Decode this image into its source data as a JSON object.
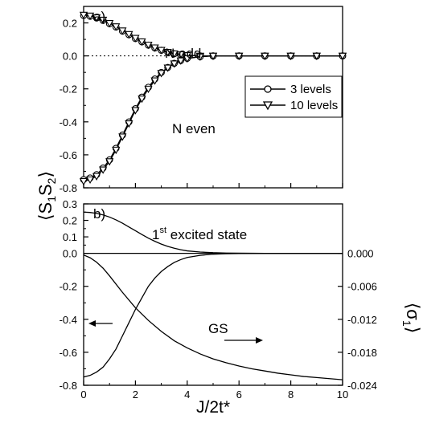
{
  "chart_data": [
    {
      "panel_label": "a)",
      "type": "line",
      "ylabel": "⟨S1S2⟩",
      "xlabel": "J/2t*",
      "xlim": [
        0,
        10
      ],
      "ylim": [
        -0.8,
        0.3
      ],
      "x_ticks": [
        0,
        2,
        4,
        6,
        8,
        10
      ],
      "y_ticks": [
        0.2,
        0.0,
        -0.2,
        -0.4,
        -0.6,
        -0.8
      ],
      "y_tick_labels": [
        "0.2",
        "0.0",
        "-0.2",
        "-0.4",
        "-0.6",
        "-0.8"
      ],
      "reference_line": {
        "y": 0.0,
        "style": "dotted"
      },
      "legend": {
        "position": "right",
        "entries": [
          "3 levels",
          "10 levels"
        ]
      },
      "annotations": [
        "N odd",
        "N even"
      ],
      "series": [
        {
          "name": "3 levels",
          "curve": "N odd",
          "marker": "circle",
          "x": [
            0,
            0.25,
            0.5,
            0.75,
            1.0,
            1.25,
            1.5,
            1.75,
            2.0,
            2.25,
            2.5,
            2.75,
            3.0,
            3.25,
            3.5,
            3.75,
            4.0,
            4.5,
            5,
            6,
            7,
            8,
            9,
            10
          ],
          "y": [
            0.245,
            0.24,
            0.23,
            0.215,
            0.195,
            0.175,
            0.15,
            0.128,
            0.105,
            0.085,
            0.065,
            0.048,
            0.034,
            0.022,
            0.013,
            0.007,
            0.003,
            0.0,
            0.0,
            0.0,
            0.0,
            0.0,
            0.0,
            0.0
          ]
        },
        {
          "name": "3 levels",
          "curve": "N even",
          "marker": "circle",
          "x": [
            0,
            0.25,
            0.5,
            0.75,
            1.0,
            1.25,
            1.5,
            1.75,
            2.0,
            2.25,
            2.5,
            2.75,
            3.0,
            3.25,
            3.5,
            3.75,
            4.0,
            4.5,
            5,
            6,
            7,
            8,
            9,
            10
          ],
          "y": [
            -0.75,
            -0.74,
            -0.72,
            -0.68,
            -0.63,
            -0.56,
            -0.48,
            -0.4,
            -0.32,
            -0.25,
            -0.19,
            -0.14,
            -0.1,
            -0.07,
            -0.045,
            -0.028,
            -0.015,
            -0.005,
            0.0,
            0.0,
            0.0,
            0.0,
            0.0,
            0.0
          ]
        },
        {
          "name": "10 levels",
          "curve": "N odd",
          "marker": "triangle-down",
          "x": [
            0,
            0.25,
            0.5,
            0.75,
            1.0,
            1.25,
            1.5,
            1.75,
            2.0,
            2.25,
            2.5,
            2.75,
            3.0,
            3.25,
            3.5,
            3.75,
            4.0,
            4.5,
            5,
            6,
            7,
            8,
            9,
            10
          ],
          "y": [
            0.248,
            0.243,
            0.233,
            0.218,
            0.198,
            0.178,
            0.153,
            0.131,
            0.108,
            0.087,
            0.067,
            0.05,
            0.035,
            0.023,
            0.014,
            0.008,
            0.004,
            0.0,
            0.0,
            0.0,
            0.0,
            0.0,
            0.0,
            0.0
          ]
        },
        {
          "name": "10 levels",
          "curve": "N even",
          "marker": "triangle-down",
          "x": [
            0,
            0.25,
            0.5,
            0.75,
            1.0,
            1.25,
            1.5,
            1.75,
            2.0,
            2.25,
            2.5,
            2.75,
            3.0,
            3.25,
            3.5,
            3.75,
            4.0,
            4.5,
            5,
            6,
            7,
            8,
            9,
            10
          ],
          "y": [
            -0.76,
            -0.75,
            -0.73,
            -0.69,
            -0.64,
            -0.57,
            -0.49,
            -0.41,
            -0.33,
            -0.26,
            -0.2,
            -0.15,
            -0.105,
            -0.072,
            -0.047,
            -0.029,
            -0.016,
            -0.005,
            0.0,
            0.0,
            0.0,
            0.0,
            0.0,
            0.0
          ]
        }
      ]
    },
    {
      "panel_label": "b)",
      "type": "line",
      "xlabel": "J/2t*",
      "xlim": [
        0,
        10
      ],
      "ylim": [
        -0.8,
        0.3
      ],
      "x_ticks": [
        0,
        2,
        4,
        6,
        8,
        10
      ],
      "y_ticks": [
        0.3,
        0.2,
        0.1,
        0.0,
        -0.2,
        -0.4,
        -0.6,
        -0.8
      ],
      "y_tick_labels": [
        "0.3",
        "0.2",
        "0.1",
        "0.0",
        "-0.2",
        "-0.4",
        "-0.6",
        "-0.8"
      ],
      "y2label": "⟨σ1⟩",
      "y2lim": [
        -0.024,
        0.0
      ],
      "y2_ticks": [
        0.0,
        -0.006,
        -0.012,
        -0.018,
        -0.024
      ],
      "y2_tick_labels": [
        "0.000",
        "-0.006",
        "-0.012",
        "-0.018",
        "-0.024"
      ],
      "annotations": [
        "1st excited state",
        "GS"
      ],
      "series": [
        {
          "name": "1st excited state",
          "axis": "left",
          "x": [
            0,
            0.25,
            0.5,
            0.75,
            1.0,
            1.25,
            1.5,
            1.75,
            2.0,
            2.25,
            2.5,
            2.75,
            3.0,
            3.25,
            3.5,
            3.75,
            4.0,
            4.5,
            5,
            5.5,
            6,
            7,
            8,
            9,
            10
          ],
          "y": [
            0.25,
            0.248,
            0.242,
            0.233,
            0.22,
            0.203,
            0.183,
            0.16,
            0.137,
            0.114,
            0.092,
            0.073,
            0.056,
            0.042,
            0.031,
            0.022,
            0.015,
            0.008,
            0.004,
            0.002,
            0.001,
            0.0,
            0.0,
            0.0,
            0.0
          ]
        },
        {
          "name": "GS",
          "axis": "left",
          "x": [
            0,
            0.25,
            0.5,
            0.75,
            1.0,
            1.25,
            1.5,
            1.75,
            2.0,
            2.25,
            2.5,
            2.75,
            3.0,
            3.25,
            3.5,
            3.75,
            4.0,
            4.5,
            5,
            5.5,
            6,
            7,
            8,
            9,
            10
          ],
          "y": [
            -0.75,
            -0.74,
            -0.72,
            -0.69,
            -0.64,
            -0.58,
            -0.5,
            -0.42,
            -0.34,
            -0.27,
            -0.2,
            -0.15,
            -0.11,
            -0.08,
            -0.055,
            -0.038,
            -0.025,
            -0.012,
            -0.005,
            -0.002,
            -0.001,
            0.0,
            0.0,
            0.0,
            0.0
          ]
        },
        {
          "name": "GS",
          "axis": "right",
          "x": [
            0,
            0.25,
            0.5,
            0.75,
            1.0,
            1.5,
            2.0,
            2.5,
            3.0,
            3.5,
            4.0,
            4.5,
            5,
            5.5,
            6,
            6.5,
            7,
            7.5,
            8,
            8.5,
            9,
            9.5,
            10
          ],
          "y": [
            -0.0003,
            -0.0008,
            -0.0016,
            -0.0027,
            -0.0041,
            -0.0071,
            -0.0099,
            -0.0122,
            -0.0142,
            -0.0159,
            -0.0172,
            -0.0183,
            -0.0192,
            -0.0199,
            -0.0205,
            -0.021,
            -0.0214,
            -0.0218,
            -0.0221,
            -0.0224,
            -0.0226,
            -0.0228,
            -0.023
          ]
        }
      ]
    }
  ]
}
